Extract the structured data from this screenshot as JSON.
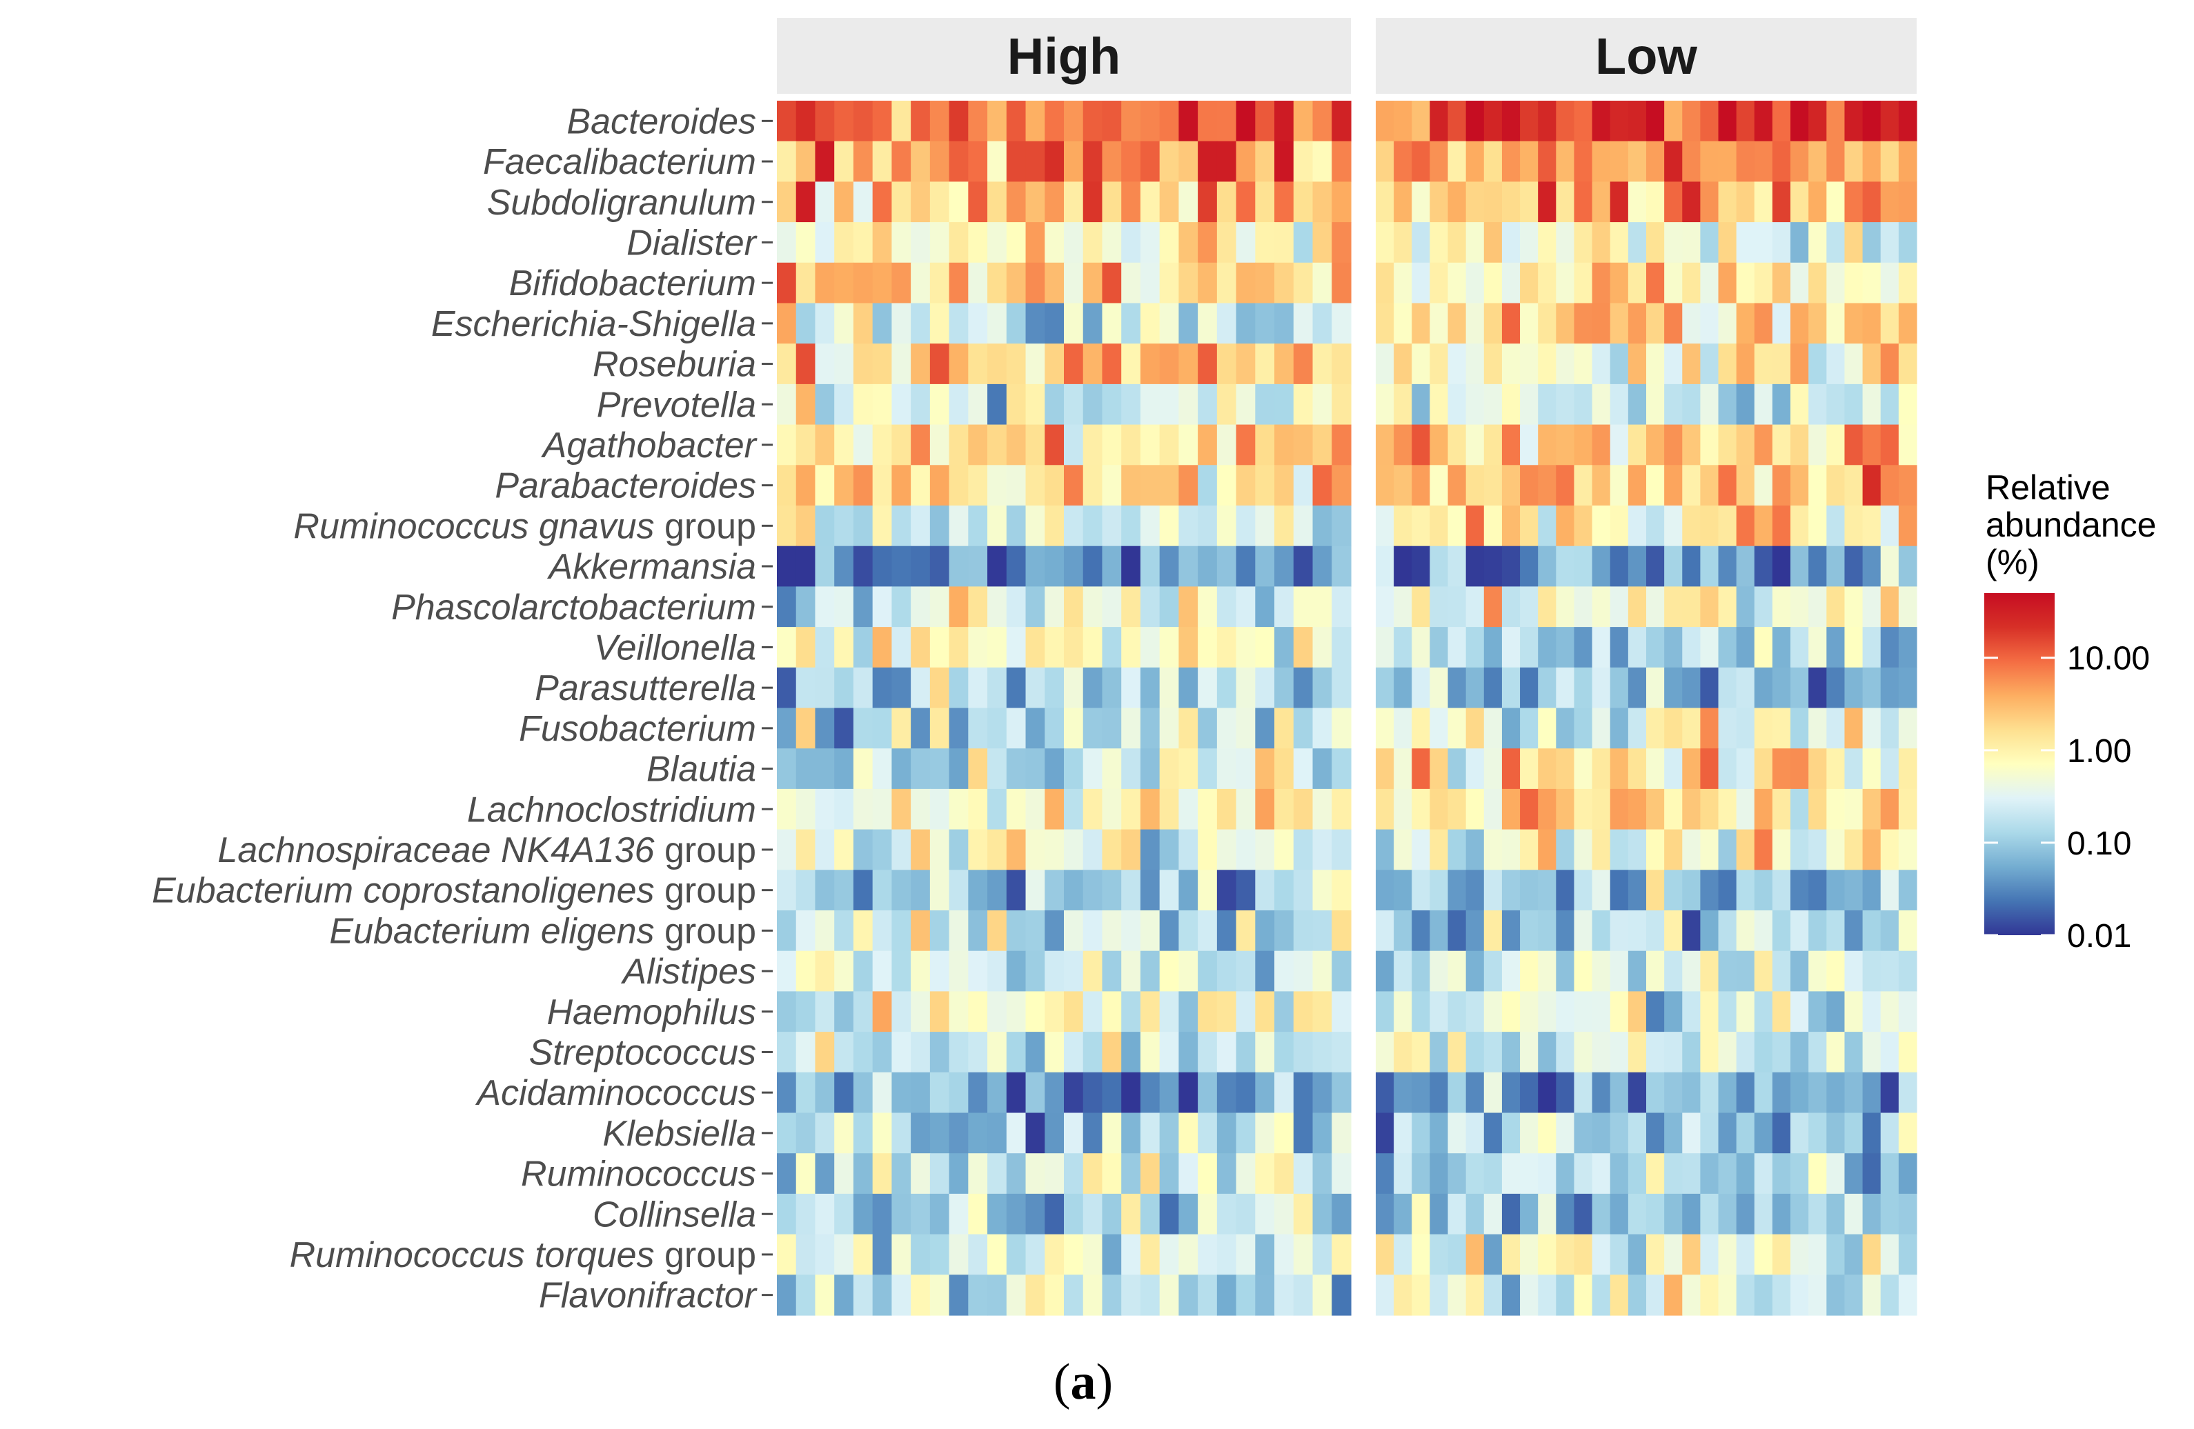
{
  "chart_data": {
    "type": "heatmap",
    "panels": [
      "High",
      "Low"
    ],
    "columns_per_panel": [
      30,
      30
    ],
    "rows": [
      {
        "name": "Bacteroides",
        "suffix": ""
      },
      {
        "name": "Faecalibacterium",
        "suffix": ""
      },
      {
        "name": "Subdoligranulum",
        "suffix": ""
      },
      {
        "name": "Dialister",
        "suffix": ""
      },
      {
        "name": "Bifidobacterium",
        "suffix": ""
      },
      {
        "name": "Escherichia-Shigella",
        "suffix": ""
      },
      {
        "name": "Roseburia",
        "suffix": ""
      },
      {
        "name": "Prevotella",
        "suffix": ""
      },
      {
        "name": "Agathobacter",
        "suffix": ""
      },
      {
        "name": "Parabacteroides",
        "suffix": ""
      },
      {
        "name": "Ruminococcus gnavus",
        "suffix": " group"
      },
      {
        "name": "Akkermansia",
        "suffix": ""
      },
      {
        "name": "Phascolarctobacterium",
        "suffix": ""
      },
      {
        "name": "Veillonella",
        "suffix": ""
      },
      {
        "name": "Parasutterella",
        "suffix": ""
      },
      {
        "name": "Fusobacterium",
        "suffix": ""
      },
      {
        "name": "Blautia",
        "suffix": ""
      },
      {
        "name": "Lachnoclostridium",
        "suffix": ""
      },
      {
        "name": "Lachnospiraceae NK4A136",
        "suffix": " group"
      },
      {
        "name": "Eubacterium coprostanoligenes",
        "suffix": " group"
      },
      {
        "name": "Eubacterium eligens",
        "suffix": " group"
      },
      {
        "name": "Alistipes",
        "suffix": ""
      },
      {
        "name": "Haemophilus",
        "suffix": ""
      },
      {
        "name": "Streptococcus",
        "suffix": ""
      },
      {
        "name": "Acidaminococcus",
        "suffix": ""
      },
      {
        "name": "Klebsiella",
        "suffix": ""
      },
      {
        "name": "Ruminococcus",
        "suffix": ""
      },
      {
        "name": "Collinsella",
        "suffix": ""
      },
      {
        "name": "Ruminococcus torques",
        "suffix": " group"
      },
      {
        "name": "Flavonifractor",
        "suffix": ""
      }
    ],
    "row_median_log10_percent": {
      "High": [
        1.0,
        0.8,
        0.4,
        -0.2,
        0.4,
        -0.6,
        0.4,
        -0.5,
        0.1,
        0.1,
        -0.4,
        -1.4,
        -0.5,
        -0.2,
        -0.9,
        -0.7,
        -0.6,
        -0.2,
        -0.4,
        -0.9,
        -0.6,
        -0.6,
        -0.4,
        -0.6,
        -1.3,
        -1.0,
        -0.6,
        -0.9,
        -0.6,
        -0.9
      ],
      "Low": [
        1.2,
        0.6,
        0.4,
        -0.3,
        0.0,
        0.2,
        0.0,
        -0.5,
        0.3,
        0.4,
        0.0,
        -1.4,
        -0.3,
        -0.8,
        -1.0,
        -0.3,
        0.0,
        0.2,
        -0.3,
        -1.0,
        -0.8,
        -0.5,
        -0.6,
        -0.6,
        -1.3,
        -0.9,
        -1.0,
        -1.0,
        -0.3,
        -0.5
      ]
    },
    "legend": {
      "title": "Relative abundance (%)",
      "title_lines": [
        "Relative",
        "abundance",
        "(%)"
      ],
      "scale": "log10",
      "breaks": [
        0.01,
        0.1,
        1,
        10
      ],
      "break_labels": [
        "0.01",
        "0.10",
        "1.00",
        "10.00"
      ],
      "limits": [
        0.01,
        50
      ],
      "colors": [
        "#313695",
        "#4575b4",
        "#74add1",
        "#abd9e9",
        "#e0f3f8",
        "#ffffbf",
        "#fee090",
        "#fdae61",
        "#f46d43",
        "#d73027",
        "#c60d22"
      ]
    },
    "xlabel": "",
    "ylabel": ""
  },
  "caption": {
    "open": "(",
    "letter": "a",
    "close": ")"
  }
}
